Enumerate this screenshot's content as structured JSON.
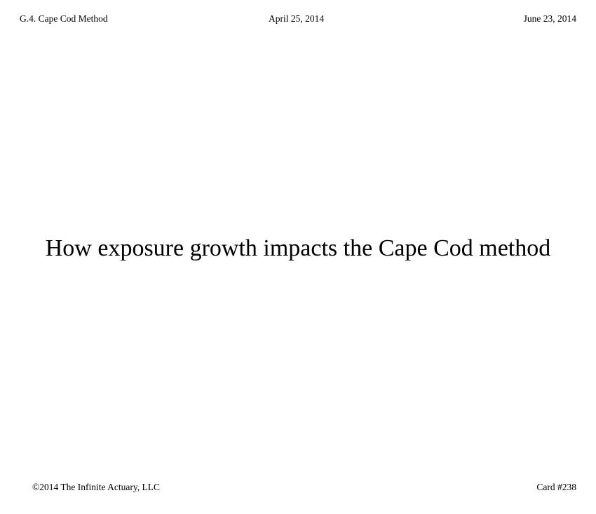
{
  "header": {
    "section": "G.4. Cape Cod Method",
    "date_created": "April 25, 2014",
    "date_updated": "June 23, 2014"
  },
  "title": "How exposure growth impacts the Cape Cod method",
  "footer": {
    "copyright": "©2014 The Infinite Actuary, LLC",
    "card": "Card #238"
  }
}
